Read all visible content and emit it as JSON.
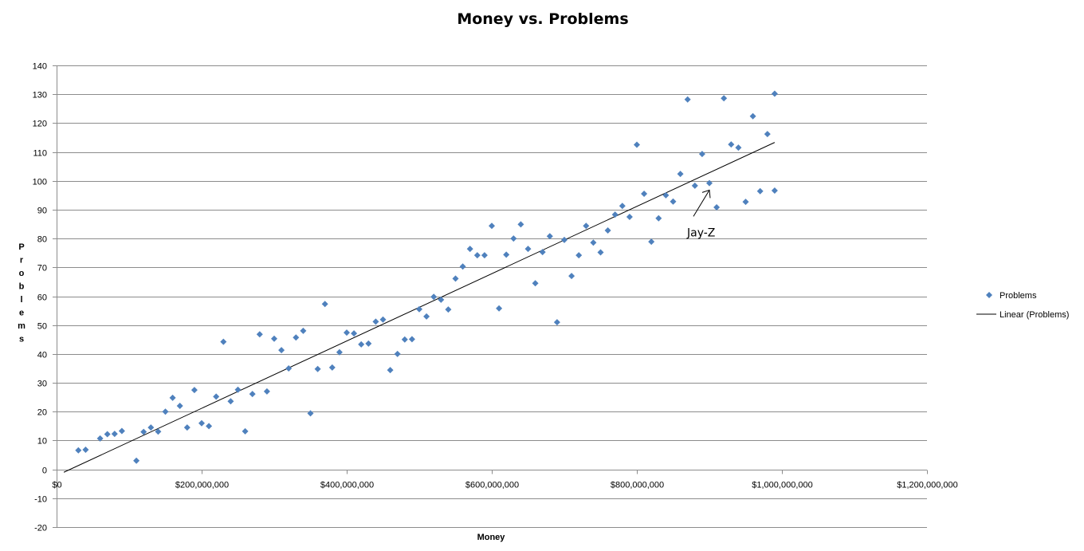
{
  "chart_data": {
    "type": "scatter",
    "title": "Money vs. Problems",
    "xlabel": "Money",
    "ylabel": "Problems",
    "xlim": [
      0,
      1200000000
    ],
    "ylim": [
      -20,
      140
    ],
    "x_ticks": [
      0,
      200000000,
      400000000,
      600000000,
      800000000,
      1000000000,
      1200000000
    ],
    "x_tick_labels": [
      "$0",
      "$200,000,000",
      "$400,000,000",
      "$600,000,000",
      "$800,000,000",
      "$1,000,000,000",
      "$1,200,000,000"
    ],
    "y_ticks": [
      -20,
      -10,
      0,
      10,
      20,
      30,
      40,
      50,
      60,
      70,
      80,
      90,
      100,
      110,
      120,
      130,
      140
    ],
    "y_tick_labels": [
      "-20",
      "-10",
      "0",
      "10",
      "20",
      "30",
      "40",
      "50",
      "60",
      "70",
      "80",
      "90",
      "100",
      "110",
      "120",
      "130",
      "140"
    ],
    "grid": "horizontal",
    "legend_position": "right",
    "marker_color": "#4f81bd",
    "trend_color": "#000000",
    "series": [
      {
        "name": "Problems",
        "points": [
          [
            30000000,
            6.6
          ],
          [
            40000000,
            6.8
          ],
          [
            60000000,
            10.7
          ],
          [
            70000000,
            12.2
          ],
          [
            80000000,
            12.3
          ],
          [
            90000000,
            13.3
          ],
          [
            110000000,
            3
          ],
          [
            120000000,
            13
          ],
          [
            130000000,
            14.5
          ],
          [
            140000000,
            13.1
          ],
          [
            150000000,
            20
          ],
          [
            160000000,
            24.8
          ],
          [
            170000000,
            22
          ],
          [
            180000000,
            14.5
          ],
          [
            190000000,
            27.5
          ],
          [
            200000000,
            16
          ],
          [
            210000000,
            15
          ],
          [
            220000000,
            25.2
          ],
          [
            230000000,
            44.2
          ],
          [
            240000000,
            23.6
          ],
          [
            250000000,
            27.6
          ],
          [
            260000000,
            13.2
          ],
          [
            270000000,
            26.1
          ],
          [
            280000000,
            46.8
          ],
          [
            290000000,
            27
          ],
          [
            300000000,
            45.3
          ],
          [
            310000000,
            41.3
          ],
          [
            320000000,
            35
          ],
          [
            330000000,
            45.7
          ],
          [
            340000000,
            48
          ],
          [
            350000000,
            19.4
          ],
          [
            360000000,
            34.8
          ],
          [
            370000000,
            57.3
          ],
          [
            380000000,
            35.3
          ],
          [
            390000000,
            40.6
          ],
          [
            400000000,
            47.4
          ],
          [
            410000000,
            47.1
          ],
          [
            420000000,
            43.3
          ],
          [
            430000000,
            43.6
          ],
          [
            440000000,
            51.2
          ],
          [
            450000000,
            51.9
          ],
          [
            460000000,
            34.4
          ],
          [
            470000000,
            40
          ],
          [
            480000000,
            45
          ],
          [
            490000000,
            45.1
          ],
          [
            500000000,
            55.5
          ],
          [
            510000000,
            53
          ],
          [
            520000000,
            59.8
          ],
          [
            530000000,
            58.8
          ],
          [
            540000000,
            55.4
          ],
          [
            550000000,
            66.1
          ],
          [
            560000000,
            70.3
          ],
          [
            570000000,
            76.4
          ],
          [
            580000000,
            74.2
          ],
          [
            590000000,
            74.2
          ],
          [
            600000000,
            84.4
          ],
          [
            610000000,
            55.8
          ],
          [
            620000000,
            74.4
          ],
          [
            630000000,
            80
          ],
          [
            640000000,
            84.9
          ],
          [
            650000000,
            76.4
          ],
          [
            660000000,
            64.5
          ],
          [
            670000000,
            75.3
          ],
          [
            680000000,
            80.8
          ],
          [
            690000000,
            51
          ],
          [
            700000000,
            79.5
          ],
          [
            710000000,
            67
          ],
          [
            720000000,
            74.2
          ],
          [
            730000000,
            84.4
          ],
          [
            740000000,
            78.6
          ],
          [
            750000000,
            75.2
          ],
          [
            760000000,
            82.8
          ],
          [
            770000000,
            88.3
          ],
          [
            780000000,
            91.3
          ],
          [
            790000000,
            87.5
          ],
          [
            800000000,
            112.5
          ],
          [
            810000000,
            95.5
          ],
          [
            820000000,
            78.9
          ],
          [
            830000000,
            87
          ],
          [
            840000000,
            95
          ],
          [
            850000000,
            92.8
          ],
          [
            860000000,
            102.4
          ],
          [
            870000000,
            128.2
          ],
          [
            880000000,
            98.3
          ],
          [
            890000000,
            109.3
          ],
          [
            900000000,
            99.2
          ],
          [
            910000000,
            90.8
          ],
          [
            920000000,
            128.6
          ],
          [
            930000000,
            112.6
          ],
          [
            940000000,
            111.5
          ],
          [
            950000000,
            92.7
          ],
          [
            960000000,
            122.4
          ],
          [
            970000000,
            96.4
          ],
          [
            980000000,
            116.2
          ],
          [
            990000000,
            96.6
          ],
          [
            990000000,
            130.2
          ]
        ]
      },
      {
        "name": "Linear (Problems)",
        "type": "line",
        "points": [
          [
            10000000,
            -1
          ],
          [
            990000000,
            113.3
          ]
        ]
      }
    ],
    "annotations": [
      {
        "text": "Jay-Z",
        "x": 900000000,
        "y": 99
      }
    ]
  },
  "legend": {
    "series_label": "Problems",
    "trend_label": "Linear (Problems)"
  }
}
